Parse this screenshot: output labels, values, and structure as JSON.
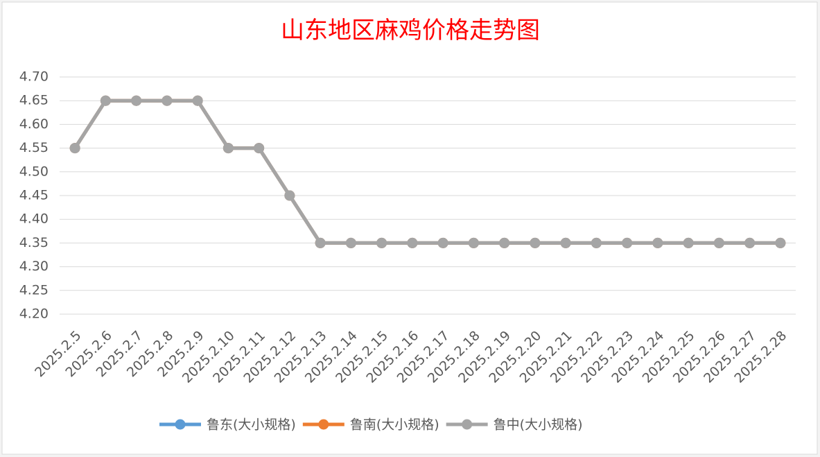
{
  "chart_data": {
    "type": "line",
    "title": "山东地区麻鸡价格走势图",
    "categories": [
      "2025.2.5",
      "2025.2.6",
      "2025.2.7",
      "2025.2.8",
      "2025.2.9",
      "2025.2.10",
      "2025.2.11",
      "2025.2.12",
      "2025.2.13",
      "2025.2.14",
      "2025.2.15",
      "2025.2.16",
      "2025.2.17",
      "2025.2.18",
      "2025.2.19",
      "2025.2.20",
      "2025.2.21",
      "2025.2.22",
      "2025.2.23",
      "2025.2.24",
      "2025.2.25",
      "2025.2.26",
      "2025.2.27",
      "2025.2.28"
    ],
    "series": [
      {
        "name": "鲁东(大小规格)",
        "color": "#5b9bd5",
        "values": [
          4.55,
          4.65,
          4.65,
          4.65,
          4.65,
          4.55,
          4.55,
          4.45,
          4.35,
          4.35,
          4.35,
          4.35,
          4.35,
          4.35,
          4.35,
          4.35,
          4.35,
          4.35,
          4.35,
          4.35,
          4.35,
          4.35,
          4.35,
          4.35
        ]
      },
      {
        "name": "鲁南(大小规格)",
        "color": "#ed7d31",
        "values": [
          4.55,
          4.65,
          4.65,
          4.65,
          4.65,
          4.55,
          4.55,
          4.45,
          4.35,
          4.35,
          4.35,
          4.35,
          4.35,
          4.35,
          4.35,
          4.35,
          4.35,
          4.35,
          4.35,
          4.35,
          4.35,
          4.35,
          4.35,
          4.35
        ]
      },
      {
        "name": "鲁中(大小规格)",
        "color": "#a5a5a5",
        "values": [
          4.55,
          4.65,
          4.65,
          4.65,
          4.65,
          4.55,
          4.55,
          4.45,
          4.35,
          4.35,
          4.35,
          4.35,
          4.35,
          4.35,
          4.35,
          4.35,
          4.35,
          4.35,
          4.35,
          4.35,
          4.35,
          4.35,
          4.35,
          4.35
        ]
      }
    ],
    "ylim": [
      4.2,
      4.7
    ],
    "yticks": [
      {
        "value": 4.2,
        "label": "4.20"
      },
      {
        "value": 4.25,
        "label": "4.25"
      },
      {
        "value": 4.3,
        "label": "4.30"
      },
      {
        "value": 4.35,
        "label": "4.35"
      },
      {
        "value": 4.4,
        "label": "4.40"
      },
      {
        "value": 4.45,
        "label": "4.45"
      },
      {
        "value": 4.5,
        "label": "4.50"
      },
      {
        "value": 4.55,
        "label": "4.55"
      },
      {
        "value": 4.6,
        "label": "4.60"
      },
      {
        "value": 4.65,
        "label": "4.65"
      },
      {
        "value": 4.7,
        "label": "4.70"
      }
    ],
    "grid": true,
    "legend": "bottom",
    "title_color": "#ff0000"
  }
}
